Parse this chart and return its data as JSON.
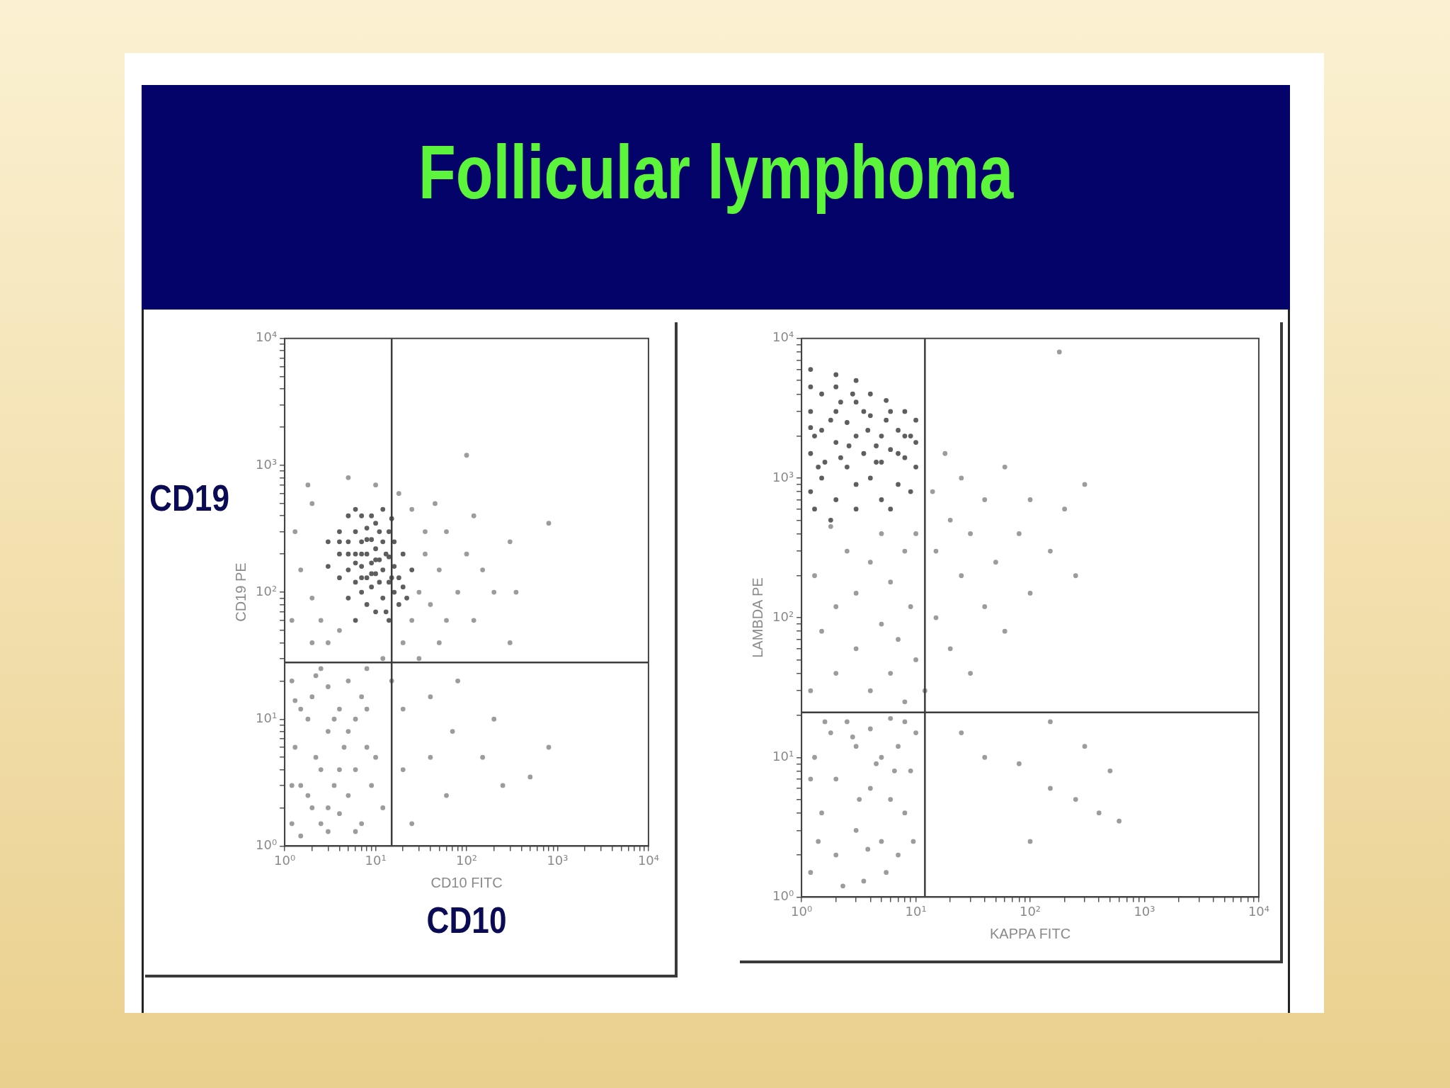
{
  "chart_data": [
    {
      "type": "scatter",
      "title": "Follicular lymphoma",
      "xlabel": "CD10 FITC",
      "ylabel": "CD19 PE",
      "annotations": [
        "CD19",
        "CD10"
      ],
      "log": "xy",
      "marker": "circle",
      "grid": false,
      "xlim": [
        1,
        10000
      ],
      "ylim": [
        1,
        10000
      ],
      "xticks": [
        {
          "value": 1,
          "label": "10⁰"
        },
        {
          "value": 2,
          "label": null
        },
        {
          "value": 3,
          "label": null
        },
        {
          "value": 4,
          "label": null
        },
        {
          "value": 5,
          "label": null
        },
        {
          "value": 6,
          "label": null
        },
        {
          "value": 7,
          "label": null
        },
        {
          "value": 8,
          "label": null
        },
        {
          "value": 9,
          "label": null
        },
        {
          "value": 10,
          "label": "10¹"
        },
        {
          "value": 20,
          "label": null
        },
        {
          "value": 30,
          "label": null
        },
        {
          "value": 40,
          "label": null
        },
        {
          "value": 50,
          "label": null
        },
        {
          "value": 60,
          "label": null
        },
        {
          "value": 70,
          "label": null
        },
        {
          "value": 80,
          "label": null
        },
        {
          "value": 90,
          "label": null
        },
        {
          "value": 100,
          "label": "10²"
        },
        {
          "value": 200,
          "label": null
        },
        {
          "value": 300,
          "label": null
        },
        {
          "value": 400,
          "label": null
        },
        {
          "value": 500,
          "label": null
        },
        {
          "value": 600,
          "label": null
        },
        {
          "value": 700,
          "label": null
        },
        {
          "value": 800,
          "label": null
        },
        {
          "value": 900,
          "label": null
        },
        {
          "value": 1000,
          "label": "10³"
        },
        {
          "value": 2000,
          "label": null
        },
        {
          "value": 3000,
          "label": null
        },
        {
          "value": 4000,
          "label": null
        },
        {
          "value": 5000,
          "label": null
        },
        {
          "value": 6000,
          "label": null
        },
        {
          "value": 7000,
          "label": null
        },
        {
          "value": 8000,
          "label": null
        },
        {
          "value": 9000,
          "label": null
        },
        {
          "value": 10000,
          "label": "10⁴"
        }
      ],
      "yticks": [
        {
          "value": 1,
          "label": "10⁰"
        },
        {
          "value": 2,
          "label": null
        },
        {
          "value": 3,
          "label": null
        },
        {
          "value": 4,
          "label": null
        },
        {
          "value": 5,
          "label": null
        },
        {
          "value": 6,
          "label": null
        },
        {
          "value": 7,
          "label": null
        },
        {
          "value": 8,
          "label": null
        },
        {
          "value": 9,
          "label": null
        },
        {
          "value": 10,
          "label": "10¹"
        },
        {
          "value": 20,
          "label": null
        },
        {
          "value": 30,
          "label": null
        },
        {
          "value": 40,
          "label": null
        },
        {
          "value": 50,
          "label": null
        },
        {
          "value": 60,
          "label": null
        },
        {
          "value": 70,
          "label": null
        },
        {
          "value": 80,
          "label": null
        },
        {
          "value": 90,
          "label": null
        },
        {
          "value": 100,
          "label": "10²"
        },
        {
          "value": 200,
          "label": null
        },
        {
          "value": 300,
          "label": null
        },
        {
          "value": 400,
          "label": null
        },
        {
          "value": 500,
          "label": null
        },
        {
          "value": 600,
          "label": null
        },
        {
          "value": 700,
          "label": null
        },
        {
          "value": 800,
          "label": null
        },
        {
          "value": 900,
          "label": null
        },
        {
          "value": 1000,
          "label": "10³"
        },
        {
          "value": 2000,
          "label": null
        },
        {
          "value": 3000,
          "label": null
        },
        {
          "value": 4000,
          "label": null
        },
        {
          "value": 5000,
          "label": null
        },
        {
          "value": 6000,
          "label": null
        },
        {
          "value": 7000,
          "label": null
        },
        {
          "value": 8000,
          "label": null
        },
        {
          "value": 9000,
          "label": null
        },
        {
          "value": 10000,
          "label": "10⁴"
        }
      ],
      "ref_lines": [
        {
          "axis": "x",
          "value": 15,
          "color": "#3c3c3c"
        },
        {
          "axis": "y",
          "value": 28,
          "color": "#3c3c3c"
        }
      ],
      "series": [
        {
          "color": "#9c9c9c",
          "x": [
            1.2,
            1.5,
            1.3,
            1.8,
            2,
            2,
            2.5,
            2.5,
            3,
            3,
            3,
            3.5,
            4,
            4,
            4.5,
            5,
            5,
            6,
            6,
            7,
            7,
            8,
            8,
            9,
            1.2,
            1.5,
            2,
            1.2,
            1.5,
            1.3,
            2,
            2,
            2.5,
            3,
            4,
            1.8,
            12,
            15,
            20,
            20,
            25,
            30,
            30,
            35,
            40,
            40,
            50,
            50,
            60,
            60,
            80,
            80,
            100,
            120,
            150,
            200,
            300,
            350,
            200,
            150,
            250,
            40,
            60,
            25,
            35,
            25,
            45,
            18,
            10,
            5,
            100,
            300,
            500,
            120,
            70,
            20,
            800,
            800,
            1.5,
            2.2,
            3,
            1.2,
            4,
            6,
            1.8,
            2.5,
            5,
            8,
            10,
            12,
            3.5,
            1.3,
            2.2
          ],
          "values": [
            1.5,
            3,
            6,
            10,
            2,
            15,
            4,
            25,
            1.3,
            8,
            18,
            3,
            12,
            1.8,
            6,
            20,
            2.5,
            4,
            10,
            1.5,
            15,
            6,
            25,
            3,
            20,
            12,
            40,
            60,
            150,
            300,
            90,
            500,
            60,
            40,
            50,
            700,
            30,
            20,
            40,
            12,
            60,
            30,
            100,
            200,
            80,
            15,
            150,
            40,
            300,
            60,
            100,
            20,
            200,
            60,
            150,
            100,
            250,
            100,
            10,
            5,
            3,
            5,
            2.5,
            1.5,
            300,
            450,
            500,
            600,
            700,
            800,
            1200,
            40,
            3.5,
            400,
            8,
            4,
            350,
            6,
            1.2,
            5,
            2,
            3,
            4,
            1.3,
            2.5,
            1.5,
            8,
            12,
            5,
            2,
            10,
            14,
            22
          ]
        },
        {
          "color": "#5e5e5e",
          "x": [
            3,
            4,
            4,
            5,
            5,
            5,
            6,
            6,
            6,
            7,
            7,
            7,
            7,
            8,
            8,
            8,
            8,
            9,
            9,
            9,
            10,
            10,
            10,
            10,
            12,
            12,
            12,
            12,
            14,
            14,
            14,
            14,
            16,
            16,
            16,
            18,
            18,
            20,
            20,
            22,
            25,
            4,
            5,
            3,
            6,
            9,
            11,
            13,
            6,
            15,
            5,
            7,
            8,
            9,
            11,
            11,
            13,
            6,
            10,
            15,
            4,
            7
          ],
          "values": [
            250,
            200,
            300,
            150,
            250,
            400,
            120,
            200,
            300,
            100,
            160,
            250,
            400,
            80,
            130,
            200,
            320,
            110,
            170,
            260,
            70,
            140,
            220,
            350,
            90,
            150,
            250,
            450,
            60,
            120,
            190,
            300,
            100,
            160,
            250,
            80,
            130,
            110,
            200,
            90,
            150,
            130,
            90,
            160,
            450,
            400,
            180,
            70,
            60,
            380,
            200,
            130,
            260,
            140,
            120,
            300,
            200,
            170,
            180,
            130,
            250,
            200
          ]
        }
      ]
    },
    {
      "type": "scatter",
      "xlabel": "KAPPA FITC",
      "ylabel": "LAMBDA PE",
      "log": "xy",
      "marker": "circle",
      "grid": false,
      "xlim": [
        1,
        10000
      ],
      "ylim": [
        1,
        10000
      ],
      "xticks": [
        {
          "value": 1,
          "label": "10⁰"
        },
        {
          "value": 2,
          "label": null
        },
        {
          "value": 3,
          "label": null
        },
        {
          "value": 4,
          "label": null
        },
        {
          "value": 5,
          "label": null
        },
        {
          "value": 6,
          "label": null
        },
        {
          "value": 7,
          "label": null
        },
        {
          "value": 8,
          "label": null
        },
        {
          "value": 9,
          "label": null
        },
        {
          "value": 10,
          "label": "10¹"
        },
        {
          "value": 20,
          "label": null
        },
        {
          "value": 30,
          "label": null
        },
        {
          "value": 40,
          "label": null
        },
        {
          "value": 50,
          "label": null
        },
        {
          "value": 60,
          "label": null
        },
        {
          "value": 70,
          "label": null
        },
        {
          "value": 80,
          "label": null
        },
        {
          "value": 90,
          "label": null
        },
        {
          "value": 100,
          "label": "10²"
        },
        {
          "value": 200,
          "label": null
        },
        {
          "value": 300,
          "label": null
        },
        {
          "value": 400,
          "label": null
        },
        {
          "value": 500,
          "label": null
        },
        {
          "value": 600,
          "label": null
        },
        {
          "value": 700,
          "label": null
        },
        {
          "value": 800,
          "label": null
        },
        {
          "value": 900,
          "label": null
        },
        {
          "value": 1000,
          "label": "10³"
        },
        {
          "value": 2000,
          "label": null
        },
        {
          "value": 3000,
          "label": null
        },
        {
          "value": 4000,
          "label": null
        },
        {
          "value": 5000,
          "label": null
        },
        {
          "value": 6000,
          "label": null
        },
        {
          "value": 7000,
          "label": null
        },
        {
          "value": 8000,
          "label": null
        },
        {
          "value": 9000,
          "label": null
        },
        {
          "value": 10000,
          "label": "10⁴"
        }
      ],
      "yticks": [
        {
          "value": 1,
          "label": "10⁰"
        },
        {
          "value": 2,
          "label": null
        },
        {
          "value": 3,
          "label": null
        },
        {
          "value": 4,
          "label": null
        },
        {
          "value": 5,
          "label": null
        },
        {
          "value": 6,
          "label": null
        },
        {
          "value": 7,
          "label": null
        },
        {
          "value": 8,
          "label": null
        },
        {
          "value": 9,
          "label": null
        },
        {
          "value": 10,
          "label": "10¹"
        },
        {
          "value": 20,
          "label": null
        },
        {
          "value": 30,
          "label": null
        },
        {
          "value": 40,
          "label": null
        },
        {
          "value": 50,
          "label": null
        },
        {
          "value": 60,
          "label": null
        },
        {
          "value": 70,
          "label": null
        },
        {
          "value": 80,
          "label": null
        },
        {
          "value": 90,
          "label": null
        },
        {
          "value": 100,
          "label": "10²"
        },
        {
          "value": 200,
          "label": null
        },
        {
          "value": 300,
          "label": null
        },
        {
          "value": 400,
          "label": null
        },
        {
          "value": 500,
          "label": null
        },
        {
          "value": 600,
          "label": null
        },
        {
          "value": 700,
          "label": null
        },
        {
          "value": 800,
          "label": null
        },
        {
          "value": 900,
          "label": null
        },
        {
          "value": 1000,
          "label": "10³"
        },
        {
          "value": 2000,
          "label": null
        },
        {
          "value": 3000,
          "label": null
        },
        {
          "value": 4000,
          "label": null
        },
        {
          "value": 5000,
          "label": null
        },
        {
          "value": 6000,
          "label": null
        },
        {
          "value": 7000,
          "label": null
        },
        {
          "value": 8000,
          "label": null
        },
        {
          "value": 9000,
          "label": null
        },
        {
          "value": 10000,
          "label": "10⁴"
        }
      ],
      "ref_lines": [
        {
          "axis": "x",
          "value": 12,
          "color": "#3c3c3c"
        },
        {
          "axis": "y",
          "value": 21,
          "color": "#3c3c3c"
        }
      ],
      "series": [
        {
          "color": "#9c9c9c",
          "x": [
            1.2,
            1.5,
            1.3,
            1.8,
            2,
            2,
            2.5,
            3,
            3,
            3.5,
            4,
            4,
            5,
            5,
            6,
            6,
            7,
            7,
            8,
            9,
            10,
            1.2,
            1.5,
            1.3,
            2,
            2,
            2.5,
            3,
            3,
            4,
            4,
            5,
            5,
            6,
            6,
            7,
            8,
            8,
            9,
            10,
            10,
            1.8,
            12,
            14,
            15,
            15,
            18,
            20,
            20,
            25,
            25,
            30,
            30,
            40,
            40,
            50,
            60,
            60,
            80,
            100,
            100,
            150,
            200,
            250,
            300,
            180,
            80,
            150,
            250,
            300,
            400,
            500,
            600,
            40,
            25,
            150,
            100,
            1.4,
            2.3,
            3.2,
            4.5,
            1.6,
            2.8,
            5.5,
            8,
            9.5,
            1.2,
            3.8,
            6.5
          ],
          "values": [
            1.5,
            4,
            10,
            15,
            2,
            7,
            18,
            3,
            12,
            1.3,
            6,
            16,
            2.5,
            10,
            5,
            19,
            2,
            12,
            4,
            8,
            15,
            30,
            80,
            200,
            40,
            120,
            300,
            60,
            150,
            30,
            250,
            90,
            400,
            40,
            180,
            70,
            300,
            25,
            120,
            50,
            400,
            450,
            30,
            800,
            300,
            100,
            1500,
            500,
            60,
            200,
            1000,
            400,
            40,
            700,
            120,
            250,
            1200,
            80,
            400,
            150,
            700,
            300,
            600,
            200,
            900,
            8000,
            9,
            6,
            5,
            12,
            4,
            8,
            3.5,
            10,
            15,
            18,
            2.5,
            2.5,
            1.2,
            5,
            9,
            18,
            14,
            1.5,
            18,
            2.5,
            7,
            2.2,
            8
          ]
        },
        {
          "color": "#5e5e5e",
          "x": [
            1.2,
            1.2,
            1.2,
            1.5,
            1.5,
            1.5,
            2,
            2,
            2,
            2,
            2.5,
            2.5,
            3,
            3,
            3,
            3.5,
            4,
            4,
            4,
            5,
            5,
            5,
            6,
            6,
            7,
            7,
            8,
            8,
            9,
            10,
            10,
            1.3,
            1.8,
            3,
            6,
            2.2,
            3.5,
            1.8,
            4.5,
            1.3,
            7,
            9,
            2.8,
            5.5,
            1.4,
            1.2,
            2,
            3,
            1.2,
            1.6,
            2.6,
            3.8,
            4.5,
            5.5,
            8,
            10,
            1.2,
            2.2
          ],
          "values": [
            3000,
            1500,
            800,
            4000,
            2200,
            1000,
            3000,
            1800,
            700,
            4500,
            2500,
            1200,
            3500,
            2000,
            900,
            1500,
            2800,
            1000,
            4000,
            2000,
            1300,
            700,
            3000,
            1600,
            2200,
            900,
            1400,
            3000,
            2000,
            1200,
            2600,
            600,
            500,
            600,
            600,
            1400,
            3000,
            2600,
            1700,
            2000,
            1500,
            800,
            4000,
            3600,
            1200,
            6000,
            5500,
            5000,
            2300,
            1300,
            1700,
            2200,
            1300,
            2600,
            2000,
            1800,
            4500,
            3500
          ]
        }
      ]
    }
  ]
}
